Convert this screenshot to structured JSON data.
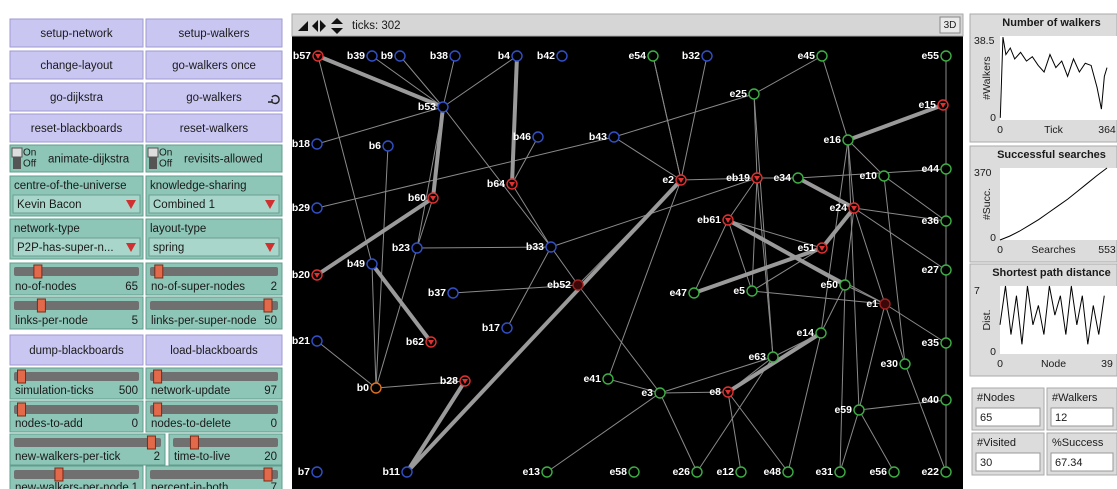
{
  "buttons": [
    "setup-network",
    "setup-walkers",
    "change-layout",
    "go-walkers once",
    "go-dijkstra",
    "go-walkers",
    "reset-blackboards",
    "reset-walkers",
    "dump-blackboards",
    "load-blackboards"
  ],
  "switches": [
    {
      "on": "On",
      "off": "Off",
      "label": "animate-dijkstra"
    },
    {
      "on": "On",
      "off": "Off",
      "label": "revisits-allowed"
    }
  ],
  "choosers": [
    {
      "label": "centre-of-the-universe",
      "value": "Kevin Bacon"
    },
    {
      "label": "knowledge-sharing",
      "value": "Combined 1"
    },
    {
      "label": "network-type",
      "value": "P2P-has-super-n..."
    },
    {
      "label": "layout-type",
      "value": "spring"
    }
  ],
  "sliders": [
    {
      "label": "no-of-nodes",
      "value": 65
    },
    {
      "label": "no-of-super-nodes",
      "value": 2
    },
    {
      "label": "links-per-node",
      "value": 5
    },
    {
      "label": "links-per-super-node",
      "value": 50
    },
    {
      "label": "simulation-ticks",
      "value": 500
    },
    {
      "label": "network-update",
      "value": 97
    },
    {
      "label": "nodes-to-add",
      "value": 0
    },
    {
      "label": "nodes-to-delete",
      "value": 0
    },
    {
      "label": "new-walkers-per-tick",
      "value": 2
    },
    {
      "label": "time-to-live",
      "value": 20
    },
    {
      "label": "new-walkers-per-node",
      "value": 1
    },
    {
      "label": "percent-in-both",
      "value": 7
    }
  ],
  "view": {
    "ticks": "ticks: 302",
    "three_d": "3D",
    "nodes": [
      "b57",
      "b39",
      "b9",
      "b38",
      "b4",
      "b42",
      "e54",
      "b32",
      "e45",
      "e55",
      "b53",
      "e25",
      "e15",
      "b46",
      "b43",
      "b6",
      "b18",
      "e16",
      "e2",
      "eb19",
      "e34",
      "e10",
      "e44",
      "b64",
      "b60",
      "e24",
      "e36",
      "b29",
      "eb61",
      "b23",
      "b33",
      "e51",
      "b49",
      "b20",
      "eb52",
      "e47",
      "e5",
      "e50",
      "e27",
      "e1",
      "b37",
      "b17",
      "b62",
      "b21",
      "e14",
      "e35",
      "e63",
      "e30",
      "e41",
      "e3",
      "e8",
      "b0",
      "b28",
      "e40",
      "e59",
      "b7",
      "b11",
      "e13",
      "e58",
      "e26",
      "e12",
      "e48",
      "e31",
      "e56",
      "e22"
    ]
  },
  "plots": [
    {
      "type": "line",
      "title": "Number of walkers",
      "ylabel": "#Walkers",
      "xlabel": "Tick",
      "xlim": [
        0,
        364
      ],
      "ylim": [
        0,
        38.5
      ],
      "x": [
        1,
        10,
        20,
        35,
        50,
        70,
        90,
        110,
        130,
        150,
        170,
        190,
        210,
        230,
        250,
        270,
        290,
        310,
        330,
        345,
        355,
        364
      ],
      "values": [
        1,
        38,
        30,
        33,
        28,
        31,
        27,
        29,
        25,
        22,
        30,
        24,
        27,
        20,
        28,
        22,
        26,
        25,
        15,
        5,
        20,
        24
      ]
    },
    {
      "type": "line",
      "title": "Successful searches",
      "ylabel": "#Succ.",
      "xlabel": "Searches",
      "xlim": [
        0,
        553
      ],
      "ylim": [
        0,
        370
      ],
      "x": [
        0,
        50,
        100,
        150,
        200,
        250,
        300,
        350,
        400,
        450,
        500,
        553
      ],
      "values": [
        0,
        20,
        45,
        75,
        105,
        140,
        175,
        210,
        250,
        290,
        330,
        370
      ]
    },
    {
      "type": "line",
      "title": "Shortest path distance",
      "ylabel": "Dist.",
      "xlabel": "Node",
      "xlim": [
        0,
        39
      ],
      "ylim": [
        0,
        7
      ],
      "x": [
        0,
        2,
        4,
        6,
        8,
        10,
        12,
        14,
        16,
        18,
        20,
        22,
        24,
        26,
        28,
        30,
        32,
        34,
        36,
        38
      ],
      "values": [
        3,
        7,
        2,
        6,
        1,
        7,
        3,
        5,
        2,
        7,
        4,
        6,
        2,
        7,
        3,
        6,
        1,
        5,
        2,
        6
      ]
    }
  ],
  "monitors": [
    {
      "label": "#Nodes",
      "value": 65
    },
    {
      "label": "#Walkers",
      "value": 12
    },
    {
      "label": "#Visited",
      "value": 30
    },
    {
      "label": "%Success",
      "value": 67.34
    }
  ]
}
